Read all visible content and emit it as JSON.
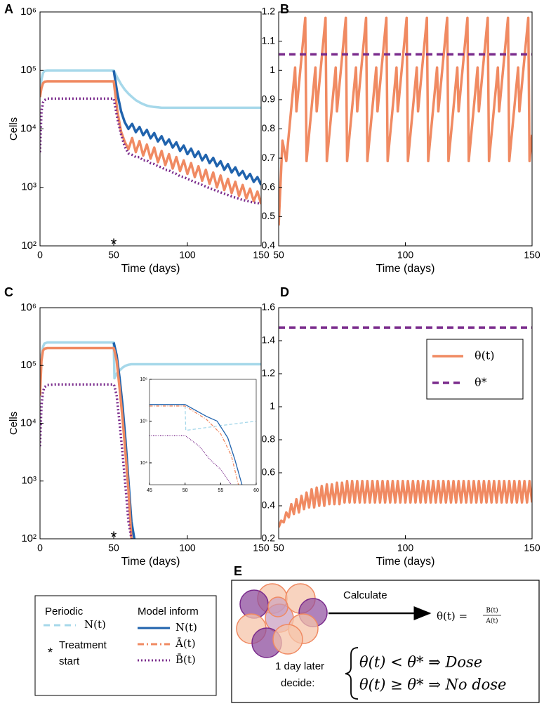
{
  "chart_data": [
    {
      "type": "line",
      "panel": "A",
      "ylabel": "Cells",
      "xlabel": "Time (days)",
      "log_y": true,
      "xlim": [
        0,
        150
      ],
      "xticks": [
        0,
        50,
        100,
        150
      ],
      "ylim": [
        100,
        1000000
      ],
      "yticks": [
        {
          "value": 100,
          "label": "10²"
        },
        {
          "value": 1000,
          "label": "10³"
        },
        {
          "value": 10000,
          "label": "10⁴"
        },
        {
          "value": 100000,
          "label": "10⁵"
        },
        {
          "value": 1000000,
          "label": "10⁶"
        }
      ],
      "annotation": {
        "text": "*",
        "x": 50
      },
      "x": [
        0,
        1,
        2,
        3,
        5,
        10,
        50,
        52.5,
        55,
        57.5,
        60,
        62.5,
        65,
        67.5,
        70,
        72.5,
        75,
        77.5,
        80,
        82.5,
        85,
        87.5,
        90,
        92.5,
        95,
        97.5,
        100,
        102.5,
        105,
        107.5,
        110,
        112.5,
        115,
        117.5,
        120,
        122.5,
        125,
        127.5,
        130,
        132.5,
        135,
        137.5,
        140,
        142.5,
        145,
        147.5,
        150
      ],
      "series": [
        {
          "name": "N(t)",
          "color": "#a6d8ea",
          "style": "solid",
          "values": [
            40000,
            70000,
            90000,
            98000,
            100000,
            100000,
            100000,
            75000,
            58000,
            47000,
            40000,
            35000,
            31000,
            28500,
            26500,
            25000,
            24200,
            23700,
            23400,
            23000,
            23000,
            23000,
            23000,
            23000,
            23000,
            23000,
            23000,
            23000,
            23000,
            23000,
            23000,
            23000,
            23000,
            23000,
            23000,
            23000,
            23000,
            23000,
            23000,
            23000,
            23000,
            23000,
            23000,
            23000,
            23000,
            23000,
            23000
          ]
        },
        {
          "name": "N(t)",
          "color": "#2063ad",
          "style": "solid",
          "values": [
            null,
            null,
            null,
            null,
            null,
            null,
            100000,
            40000,
            20000,
            13000,
            10000,
            12200,
            8800,
            10800,
            7800,
            9600,
            6900,
            8500,
            6100,
            7500,
            5400,
            6600,
            4800,
            5900,
            4200,
            5200,
            3700,
            4600,
            3300,
            4100,
            2900,
            3600,
            2600,
            3200,
            2300,
            2800,
            2000,
            2500,
            1800,
            2200,
            1600,
            1900,
            1400,
            1700,
            1240,
            1500,
            1100
          ]
        },
        {
          "name": "Ā(t)",
          "color": "#f08a62",
          "style": "solid",
          "values": [
            35000,
            50000,
            60000,
            64000,
            65000,
            65000,
            65000,
            20000,
            9000,
            6000,
            4500,
            7000,
            4000,
            6200,
            3500,
            5400,
            3100,
            4800,
            2700,
            4200,
            2400,
            3700,
            2100,
            3300,
            1900,
            2900,
            1700,
            2600,
            1500,
            2300,
            1300,
            2000,
            1150,
            1800,
            1000,
            1600,
            900,
            1400,
            800,
            1250,
            720,
            1100,
            650,
            950,
            580,
            850,
            520
          ]
        },
        {
          "name": "B̄(t)",
          "color": "#7a2b8c",
          "style": "dotted",
          "values": [
            4000,
            20000,
            28000,
            31000,
            33000,
            33000,
            33000,
            15000,
            8000,
            5000,
            3800,
            3600,
            3300,
            3300,
            2900,
            2900,
            2600,
            2500,
            2300,
            2200,
            2000,
            1950,
            1800,
            1700,
            1550,
            1500,
            1400,
            1320,
            1230,
            1170,
            1100,
            1030,
            970,
            920,
            870,
            820,
            780,
            740,
            700,
            670,
            640,
            610,
            590,
            570,
            550,
            540,
            520
          ]
        }
      ]
    },
    {
      "type": "line",
      "panel": "B",
      "xlabel": "Time (days)",
      "xlim": [
        50,
        150
      ],
      "xticks": [
        50,
        100,
        150
      ],
      "ylim": [
        0.4,
        1.2
      ],
      "yticks": [
        0.4,
        0.5,
        0.6,
        0.7,
        0.8,
        0.9,
        1,
        1.1,
        1.2
      ],
      "series": [
        {
          "color": "#f08a62",
          "style": "solid",
          "x": [
            50,
            51.5,
            53,
            56.5,
            57,
            60.5,
            61,
            64.5,
            65,
            68.5,
            69,
            72.5,
            73,
            76.5,
            77,
            80.5,
            81,
            84.5,
            85,
            88.5,
            89,
            92.5,
            93,
            96.5,
            97,
            100.5,
            101,
            104.5,
            105,
            108.5,
            109,
            112.5,
            113,
            116.5,
            117,
            120.5,
            121,
            124.5,
            125,
            128.5,
            129,
            132.5,
            133,
            136.5,
            137,
            140.5,
            141,
            144.5,
            145,
            148.5,
            149,
            150
          ],
          "values": [
            0.47,
            0.76,
            0.69,
            1.01,
            0.86,
            1.18,
            0.69,
            1.01,
            0.86,
            1.18,
            0.69,
            1.01,
            0.86,
            1.18,
            0.69,
            1.01,
            0.86,
            1.18,
            0.69,
            1.01,
            0.86,
            1.18,
            0.69,
            1.01,
            0.86,
            1.18,
            0.69,
            1.01,
            0.86,
            1.18,
            0.69,
            1.01,
            0.86,
            1.18,
            0.69,
            1.01,
            0.86,
            1.18,
            0.69,
            1.01,
            0.86,
            1.18,
            0.69,
            1.01,
            0.86,
            1.18,
            0.69,
            1.01,
            0.86,
            1.18,
            0.69,
            0.78
          ]
        },
        {
          "color": "#7a2b8c",
          "style": "dashed",
          "x": [
            50,
            150
          ],
          "values": [
            1.055,
            1.055
          ]
        }
      ]
    },
    {
      "type": "line",
      "panel": "C",
      "ylabel": "Cells",
      "xlabel": "Time (days)",
      "log_y": true,
      "xlim": [
        0,
        150
      ],
      "xticks": [
        0,
        50,
        100,
        150
      ],
      "ylim": [
        100,
        1000000
      ],
      "yticks": [
        {
          "value": 100,
          "label": "10²"
        },
        {
          "value": 1000,
          "label": "10³"
        },
        {
          "value": 10000,
          "label": "10⁴"
        },
        {
          "value": 100000,
          "label": "10⁵"
        },
        {
          "value": 1000000,
          "label": "10⁶"
        }
      ],
      "annotation": {
        "text": "*",
        "x": 50
      },
      "x": [
        0,
        1,
        2,
        3,
        5,
        10,
        50,
        50.5,
        52,
        54,
        56,
        58,
        60,
        62,
        64,
        70,
        80,
        100,
        150
      ],
      "series": [
        {
          "color": "#a6d8ea",
          "style": "solid",
          "values": [
            60000,
            150000,
            210000,
            240000,
            250000,
            250000,
            250000,
            60000,
            72000,
            82000,
            92000,
            99000,
            103000,
            105000,
            105000,
            105000,
            105000,
            105000,
            105000
          ]
        },
        {
          "color": "#2063ad",
          "style": "solid",
          "values": [
            null,
            null,
            null,
            null,
            null,
            null,
            250000,
            220000,
            150000,
            60000,
            20000,
            5000,
            1000,
            200,
            100,
            null,
            null,
            null,
            null
          ]
        },
        {
          "color": "#f08a62",
          "style": "solid",
          "values": [
            30000,
            120000,
            180000,
            195000,
            200000,
            200000,
            200000,
            180000,
            120000,
            40000,
            12000,
            3000,
            700,
            100,
            null,
            null,
            null,
            null,
            null
          ]
        },
        {
          "color": "#7a2b8c",
          "style": "dotted",
          "values": [
            4000,
            20000,
            35000,
            42000,
            46000,
            47000,
            47000,
            44000,
            30000,
            10000,
            3000,
            800,
            200,
            100,
            null,
            null,
            null,
            null,
            null
          ]
        }
      ]
    },
    {
      "type": "line",
      "log_y": true,
      "xlim": [
        45,
        60
      ],
      "xticks": [
        45,
        50,
        55,
        60
      ],
      "ylim": [
        3000,
        1000000
      ],
      "yticks": [
        {
          "value": 10000,
          "label": "10⁴"
        },
        {
          "value": 100000,
          "label": "10⁵"
        },
        {
          "value": 1000000,
          "label": "10⁶"
        }
      ],
      "series": [
        {
          "color": "#a6d8ea",
          "style": "dashed",
          "x": [
            45,
            50,
            50.1,
            55,
            60
          ],
          "values": [
            250000,
            250000,
            60000,
            78000,
            100000
          ]
        },
        {
          "color": "#2063ad",
          "style": "solid",
          "x": [
            45,
            50,
            53,
            54.5,
            56,
            57,
            58
          ],
          "values": [
            250000,
            250000,
            130000,
            100000,
            40000,
            12000,
            3000
          ]
        },
        {
          "color": "#f08a62",
          "style": "dashdot",
          "x": [
            45,
            50,
            53,
            55,
            56.5,
            57.5
          ],
          "values": [
            230000,
            230000,
            110000,
            50000,
            15000,
            3000
          ]
        },
        {
          "color": "#7a2b8c",
          "style": "dotted",
          "x": [
            45,
            50,
            52,
            53.5,
            55,
            56.5
          ],
          "values": [
            45000,
            45000,
            25000,
            12000,
            7000,
            3000
          ]
        }
      ]
    },
    {
      "type": "line",
      "panel": "D",
      "xlabel": "Time (days)",
      "xlim": [
        50,
        150
      ],
      "xticks": [
        50,
        100,
        150
      ],
      "ylim": [
        0.2,
        1.6
      ],
      "yticks": [
        0.2,
        0.4,
        0.6,
        0.8,
        1,
        1.2,
        1.4,
        1.6
      ],
      "legend": "upper right",
      "series": [
        {
          "name": "θ(t)",
          "color": "#f08a62",
          "style": "solid",
          "x": [
            50,
            51,
            52,
            53,
            54,
            55,
            56,
            57,
            58,
            59,
            60,
            61,
            62,
            63,
            64,
            65,
            66,
            67,
            68,
            69,
            70,
            71,
            72,
            73,
            74,
            75,
            76,
            77,
            78,
            79,
            80,
            81,
            82,
            83,
            84,
            85,
            86,
            87,
            88,
            89,
            90,
            91,
            92,
            93,
            94,
            95,
            96,
            97,
            98,
            99,
            100,
            101,
            102,
            103,
            104,
            105,
            106,
            107,
            108,
            109,
            110,
            111,
            112,
            113,
            114,
            115,
            116,
            117,
            118,
            119,
            120,
            121,
            122,
            123,
            124,
            125,
            126,
            127,
            128,
            129,
            130,
            131,
            132,
            133,
            134,
            135,
            136,
            137,
            138,
            139,
            140,
            141,
            142,
            143,
            144,
            145,
            146,
            147,
            148,
            149,
            150
          ],
          "values": [
            0.27,
            0.31,
            0.3,
            0.36,
            0.33,
            0.41,
            0.35,
            0.44,
            0.36,
            0.46,
            0.38,
            0.48,
            0.39,
            0.5,
            0.39,
            0.51,
            0.4,
            0.52,
            0.4,
            0.53,
            0.41,
            0.53,
            0.41,
            0.54,
            0.41,
            0.54,
            0.42,
            0.55,
            0.42,
            0.55,
            0.42,
            0.55,
            0.42,
            0.55,
            0.42,
            0.55,
            0.42,
            0.55,
            0.42,
            0.55,
            0.42,
            0.55,
            0.42,
            0.55,
            0.42,
            0.55,
            0.42,
            0.55,
            0.42,
            0.55,
            0.42,
            0.55,
            0.42,
            0.55,
            0.42,
            0.55,
            0.42,
            0.55,
            0.42,
            0.55,
            0.42,
            0.55,
            0.42,
            0.55,
            0.42,
            0.55,
            0.42,
            0.55,
            0.42,
            0.55,
            0.42,
            0.55,
            0.42,
            0.55,
            0.42,
            0.55,
            0.42,
            0.55,
            0.42,
            0.55,
            0.42,
            0.55,
            0.42,
            0.55,
            0.42,
            0.55,
            0.42,
            0.55,
            0.42,
            0.55,
            0.42,
            0.55,
            0.42,
            0.55,
            0.42,
            0.55,
            0.42,
            0.55,
            0.42,
            0.55,
            0.42
          ]
        },
        {
          "name": "θ*",
          "color": "#7a2b8c",
          "style": "dashed",
          "x": [
            50,
            150
          ],
          "values": [
            1.48,
            1.48
          ]
        }
      ]
    }
  ],
  "legend": {
    "groups": [
      "Periodic",
      "Model inform"
    ],
    "marker": "*",
    "marker_label": [
      "Treatment",
      "start"
    ],
    "styles": [
      "dashed",
      "solid",
      "dashdot",
      "dotted"
    ]
  },
  "diagram": {
    "label": "E",
    "action": "Calculate",
    "formula_lhs": "θ(t) =",
    "numerator": "B(t)",
    "denominator": "A(t)",
    "delay": "1 day later",
    "decide": "decide:",
    "rules": [
      "θ(t) < θ* ⇒ Dose",
      "θ(t) ≥ θ* ⇒ No dose"
    ]
  }
}
